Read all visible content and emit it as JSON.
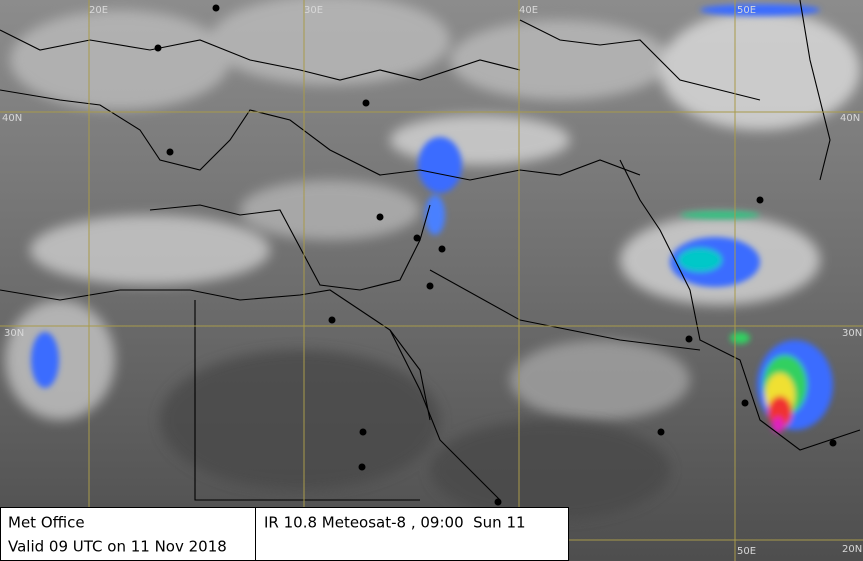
{
  "map": {
    "grid_labels": {
      "top": [
        "20E",
        "30E",
        "40E",
        "50E"
      ],
      "left": [
        "40N",
        "30N"
      ],
      "right": [
        "40N",
        "30N",
        "20N"
      ],
      "bottom": [
        "50E"
      ]
    },
    "info": {
      "source": "Met Office",
      "valid": "Valid 09 UTC on 11 Nov 2018",
      "product": "IR 10.8 Meteosat-8 , 09:00  Sun 11"
    }
  }
}
